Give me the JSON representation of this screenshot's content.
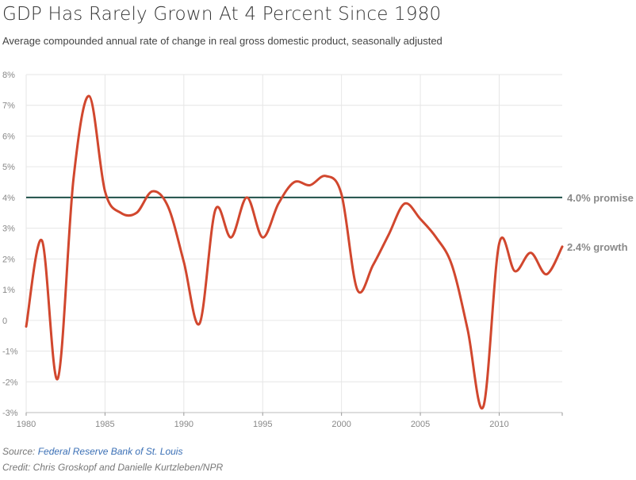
{
  "header": {
    "title": "GDP Has Rarely Grown At 4 Percent Since 1980",
    "subtitle": "Average compounded annual rate of change in real gross domestic product, seasonally adjusted"
  },
  "footer": {
    "source_prefix": "Source: ",
    "source_link": "Federal Reserve Bank of St. Louis",
    "credit": "Credit: Chris Groskopf and Danielle Kurtzleben/NPR"
  },
  "chart_data": {
    "type": "line",
    "title": "GDP Has Rarely Grown At 4 Percent Since 1980",
    "subtitle": "Average compounded annual rate of change in real gross domestic product, seasonally adjusted",
    "xlabel": "",
    "ylabel": "",
    "xlim": [
      1980,
      2014
    ],
    "ylim": [
      -3,
      8
    ],
    "x_ticks": [
      1980,
      1985,
      1990,
      1995,
      2000,
      2005,
      2010
    ],
    "x_tick_labels": [
      "1980",
      "1985",
      "1990",
      "1995",
      "2000",
      "2005",
      "2010"
    ],
    "y_ticks": [
      -3,
      -2,
      -1,
      0,
      1,
      2,
      3,
      4,
      5,
      6,
      7,
      8
    ],
    "y_tick_labels": [
      "-3%",
      "-2%",
      "-1%",
      "0",
      "1%",
      "2%",
      "3%",
      "4%",
      "5%",
      "6%",
      "7%",
      "8%"
    ],
    "grid": true,
    "line_color": "#d1472e",
    "reference_color": "#1f5148",
    "series": [
      {
        "x": [
          1980,
          1981,
          1982,
          1983,
          1984,
          1985,
          1986,
          1987,
          1988,
          1989,
          1990,
          1991,
          1992,
          1993,
          1994,
          1995,
          1996,
          1997,
          1998,
          1999,
          2000,
          2001,
          2002,
          2003,
          2004,
          2005,
          2006,
          2007,
          2008,
          2009,
          2010,
          2011,
          2012,
          2013,
          2014
        ],
        "values": [
          -0.2,
          2.6,
          -1.9,
          4.6,
          7.3,
          4.2,
          3.5,
          3.5,
          4.2,
          3.7,
          1.9,
          -0.1,
          3.6,
          2.7,
          4.0,
          2.7,
          3.8,
          4.5,
          4.4,
          4.7,
          4.1,
          1.0,
          1.8,
          2.8,
          3.8,
          3.3,
          2.7,
          1.8,
          -0.3,
          -2.8,
          2.5,
          1.6,
          2.2,
          1.5,
          2.4
        ]
      }
    ],
    "reference_line": {
      "value": 4.0
    },
    "annotations": [
      {
        "text": "4.0% promise",
        "y": 4.0
      },
      {
        "text": "2.4% growth",
        "y": 2.4
      }
    ]
  }
}
